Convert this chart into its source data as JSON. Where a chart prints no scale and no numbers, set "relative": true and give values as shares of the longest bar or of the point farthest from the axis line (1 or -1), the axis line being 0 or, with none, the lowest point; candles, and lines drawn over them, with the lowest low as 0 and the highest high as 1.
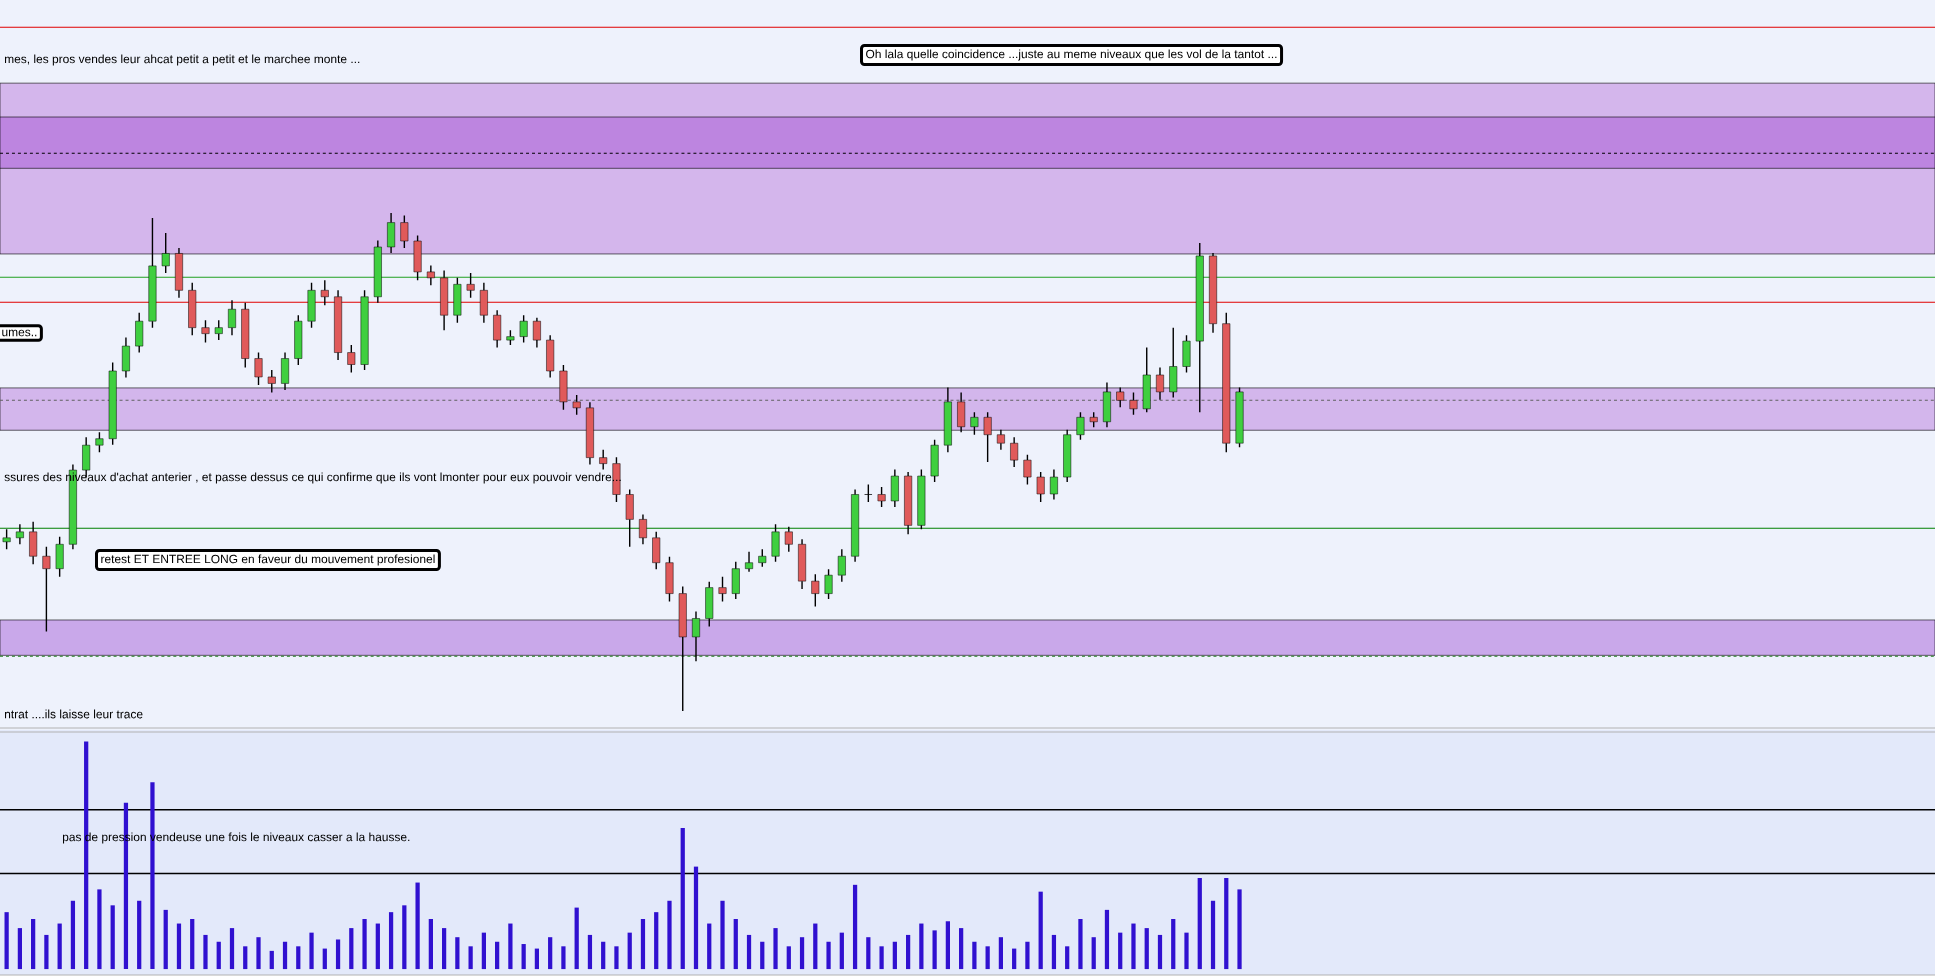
{
  "chart_data": [
    {
      "type": "candlestick",
      "relative": true,
      "categories": [
        null,
        null,
        null,
        null,
        null,
        null,
        null,
        null,
        null,
        null,
        null,
        null,
        null,
        null,
        null,
        null,
        null,
        null,
        null,
        null,
        null,
        null,
        null,
        null,
        null,
        null,
        null,
        null,
        null,
        null,
        null,
        null,
        null,
        null,
        null,
        null,
        null,
        null,
        null,
        null,
        null,
        null,
        null,
        null,
        null,
        null,
        null,
        null,
        null,
        null,
        null,
        null,
        null,
        null,
        null,
        null,
        null,
        null,
        null,
        null,
        null,
        null,
        null,
        null,
        null,
        null,
        null,
        null,
        null,
        null,
        null,
        null,
        null,
        null,
        null,
        null,
        null,
        null,
        null,
        null,
        null,
        null,
        null,
        null,
        null,
        null,
        null,
        null,
        null,
        null,
        null,
        null,
        null,
        null
      ],
      "ohlc": [
        [
          0.34,
          0.365,
          0.325,
          0.348
        ],
        [
          0.348,
          0.375,
          0.335,
          0.36
        ],
        [
          0.36,
          0.38,
          0.295,
          0.311
        ],
        [
          0.311,
          0.33,
          0.16,
          0.286
        ],
        [
          0.286,
          0.35,
          0.27,
          0.335
        ],
        [
          0.335,
          0.495,
          0.325,
          0.484
        ],
        [
          0.484,
          0.55,
          0.47,
          0.534
        ],
        [
          0.534,
          0.56,
          0.52,
          0.547
        ],
        [
          0.547,
          0.7,
          0.535,
          0.683
        ],
        [
          0.683,
          0.75,
          0.67,
          0.733
        ],
        [
          0.733,
          0.8,
          0.72,
          0.783
        ],
        [
          0.783,
          0.99,
          0.77,
          0.894
        ],
        [
          0.894,
          0.96,
          0.88,
          0.919
        ],
        [
          0.919,
          0.93,
          0.83,
          0.845
        ],
        [
          0.845,
          0.86,
          0.755,
          0.77
        ],
        [
          0.77,
          0.785,
          0.74,
          0.758
        ],
        [
          0.758,
          0.785,
          0.745,
          0.77
        ],
        [
          0.77,
          0.825,
          0.755,
          0.807
        ],
        [
          0.807,
          0.82,
          0.69,
          0.708
        ],
        [
          0.708,
          0.72,
          0.655,
          0.671
        ],
        [
          0.671,
          0.685,
          0.64,
          0.658
        ],
        [
          0.658,
          0.72,
          0.645,
          0.708
        ],
        [
          0.708,
          0.795,
          0.695,
          0.783
        ],
        [
          0.783,
          0.86,
          0.77,
          0.845
        ],
        [
          0.845,
          0.865,
          0.815,
          0.832
        ],
        [
          0.832,
          0.845,
          0.705,
          0.72
        ],
        [
          0.72,
          0.735,
          0.68,
          0.696
        ],
        [
          0.696,
          0.845,
          0.685,
          0.832
        ],
        [
          0.832,
          0.945,
          0.82,
          0.932
        ],
        [
          0.932,
          1.0,
          0.92,
          0.981
        ],
        [
          0.981,
          0.995,
          0.93,
          0.944
        ],
        [
          0.944,
          0.955,
          0.865,
          0.882
        ],
        [
          0.882,
          0.895,
          0.855,
          0.87
        ],
        [
          0.87,
          0.885,
          0.765,
          0.795
        ],
        [
          0.795,
          0.87,
          0.78,
          0.857
        ],
        [
          0.857,
          0.88,
          0.83,
          0.845
        ],
        [
          0.845,
          0.86,
          0.78,
          0.795
        ],
        [
          0.795,
          0.805,
          0.73,
          0.745
        ],
        [
          0.745,
          0.765,
          0.735,
          0.752
        ],
        [
          0.752,
          0.795,
          0.74,
          0.783
        ],
        [
          0.783,
          0.79,
          0.73,
          0.745
        ],
        [
          0.745,
          0.755,
          0.67,
          0.683
        ],
        [
          0.683,
          0.695,
          0.605,
          0.621
        ],
        [
          0.621,
          0.635,
          0.595,
          0.609
        ],
        [
          0.609,
          0.62,
          0.495,
          0.509
        ],
        [
          0.509,
          0.525,
          0.485,
          0.497
        ],
        [
          0.497,
          0.51,
          0.42,
          0.435
        ],
        [
          0.435,
          0.445,
          0.33,
          0.385
        ],
        [
          0.385,
          0.395,
          0.335,
          0.348
        ],
        [
          0.348,
          0.36,
          0.285,
          0.298
        ],
        [
          0.298,
          0.31,
          0.22,
          0.236
        ],
        [
          0.236,
          0.25,
          0.0,
          0.149
        ],
        [
          0.149,
          0.2,
          0.1,
          0.186
        ],
        [
          0.186,
          0.26,
          0.17,
          0.248
        ],
        [
          0.248,
          0.27,
          0.22,
          0.236
        ],
        [
          0.236,
          0.3,
          0.225,
          0.286
        ],
        [
          0.286,
          0.32,
          0.28,
          0.298
        ],
        [
          0.298,
          0.325,
          0.29,
          0.311
        ],
        [
          0.311,
          0.375,
          0.3,
          0.36
        ],
        [
          0.36,
          0.37,
          0.32,
          0.335
        ],
        [
          0.335,
          0.345,
          0.245,
          0.261
        ],
        [
          0.261,
          0.275,
          0.21,
          0.236
        ],
        [
          0.236,
          0.285,
          0.225,
          0.273
        ],
        [
          0.273,
          0.325,
          0.26,
          0.311
        ],
        [
          0.311,
          0.445,
          0.3,
          0.435
        ],
        [
          0.435,
          0.455,
          0.42,
          0.435
        ],
        [
          0.435,
          0.45,
          0.41,
          0.422
        ],
        [
          0.422,
          0.485,
          0.41,
          0.472
        ],
        [
          0.472,
          0.48,
          0.355,
          0.373
        ],
        [
          0.373,
          0.485,
          0.365,
          0.472
        ],
        [
          0.472,
          0.545,
          0.46,
          0.534
        ],
        [
          0.534,
          0.65,
          0.52,
          0.621
        ],
        [
          0.621,
          0.64,
          0.56,
          0.571
        ],
        [
          0.571,
          0.6,
          0.555,
          0.59
        ],
        [
          0.59,
          0.6,
          0.5,
          0.555
        ],
        [
          0.555,
          0.565,
          0.525,
          0.538
        ],
        [
          0.538,
          0.55,
          0.49,
          0.504
        ],
        [
          0.504,
          0.515,
          0.455,
          0.47
        ],
        [
          0.47,
          0.48,
          0.42,
          0.436
        ],
        [
          0.436,
          0.485,
          0.425,
          0.47
        ],
        [
          0.47,
          0.565,
          0.46,
          0.555
        ],
        [
          0.555,
          0.6,
          0.545,
          0.59
        ],
        [
          0.59,
          0.6,
          0.57,
          0.581
        ],
        [
          0.581,
          0.66,
          0.57,
          0.641
        ],
        [
          0.641,
          0.65,
          0.61,
          0.624
        ],
        [
          0.624,
          0.64,
          0.595,
          0.607
        ],
        [
          0.607,
          0.73,
          0.6,
          0.675
        ],
        [
          0.675,
          0.69,
          0.625,
          0.641
        ],
        [
          0.641,
          0.77,
          0.63,
          0.692
        ],
        [
          0.692,
          0.755,
          0.68,
          0.743
        ],
        [
          0.743,
          0.94,
          0.6,
          0.914
        ],
        [
          0.914,
          0.92,
          0.76,
          0.778
        ],
        [
          0.778,
          0.8,
          0.52,
          0.538
        ],
        [
          0.538,
          0.65,
          0.53,
          0.641
        ]
      ],
      "bands": [
        {
          "axis": "y",
          "from": 0.918,
          "to": 1.261,
          "color": "#d4b6ec"
        },
        {
          "axis": "y",
          "from": 1.09,
          "to": 1.193,
          "color": "#bd85e0"
        },
        {
          "axis": "y",
          "from": 0.564,
          "to": 0.649,
          "color": "#d3b6ec"
        },
        {
          "axis": "y",
          "from": 0.112,
          "to": 0.183,
          "color": "#c9a8ea"
        }
      ],
      "ref_lines": [
        {
          "axis": "y",
          "value": 1.373,
          "color": "#e00000",
          "line_style": "solid"
        },
        {
          "axis": "y",
          "value": 1.12,
          "color": "#000000",
          "line_style": "dashed"
        },
        {
          "axis": "y",
          "value": 0.871,
          "color": "#20a020",
          "line_style": "solid"
        },
        {
          "axis": "y",
          "value": 0.821,
          "color": "#e00000",
          "line_style": "solid"
        },
        {
          "axis": "y",
          "value": 0.624,
          "color": "#606060",
          "line_style": "dashed"
        },
        {
          "axis": "y",
          "value": 0.367,
          "color": "#008000",
          "line_style": "solid"
        },
        {
          "axis": "y",
          "value": 0.11,
          "color": "#208020",
          "line_style": "dashed"
        }
      ],
      "annotations": [
        "mes, les pros vendes leur ahcat petit a petit et le marchee monte ...",
        "Oh lala quelle coincidence ...juste au meme niveaux que les vol de la tantot ...",
        "umes..",
        "ssures des niveaux d'achat anterier , et passe dessus ce qui confirme que ils vont lmonter pour eux pouvoir vendre...",
        "retest ET ENTREE LONG en faveur du mouvement profesionel",
        "ntrat ....ils laisse leur trace"
      ]
    },
    {
      "type": "bar",
      "relative": true,
      "color": "#3010d0",
      "categories": [
        null,
        null,
        null,
        null,
        null,
        null,
        null,
        null,
        null,
        null,
        null,
        null,
        null,
        null,
        null,
        null,
        null,
        null,
        null,
        null,
        null,
        null,
        null,
        null,
        null,
        null,
        null,
        null,
        null,
        null,
        null,
        null,
        null,
        null,
        null,
        null,
        null,
        null,
        null,
        null,
        null,
        null,
        null,
        null,
        null,
        null,
        null,
        null,
        null,
        null,
        null,
        null,
        null,
        null,
        null,
        null,
        null,
        null,
        null,
        null,
        null,
        null,
        null,
        null,
        null,
        null,
        null,
        null,
        null,
        null,
        null,
        null,
        null,
        null,
        null,
        null,
        null,
        null,
        null,
        null,
        null,
        null,
        null,
        null,
        null,
        null,
        null,
        null,
        null,
        null,
        null,
        null,
        null,
        null
      ],
      "values": [
        0.25,
        0.18,
        0.22,
        0.15,
        0.2,
        0.3,
        1.0,
        0.35,
        0.28,
        0.73,
        0.3,
        0.82,
        0.26,
        0.2,
        0.22,
        0.15,
        0.12,
        0.18,
        0.1,
        0.14,
        0.08,
        0.12,
        0.1,
        0.16,
        0.09,
        0.13,
        0.18,
        0.22,
        0.2,
        0.25,
        0.28,
        0.38,
        0.22,
        0.18,
        0.14,
        0.1,
        0.16,
        0.12,
        0.2,
        0.11,
        0.09,
        0.14,
        0.1,
        0.27,
        0.15,
        0.12,
        0.1,
        0.16,
        0.22,
        0.25,
        0.3,
        0.62,
        0.45,
        0.2,
        0.3,
        0.22,
        0.15,
        0.12,
        0.18,
        0.1,
        0.14,
        0.2,
        0.12,
        0.16,
        0.37,
        0.14,
        0.1,
        0.12,
        0.15,
        0.2,
        0.17,
        0.21,
        0.18,
        0.12,
        0.1,
        0.14,
        0.09,
        0.12,
        0.34,
        0.15,
        0.1,
        0.22,
        0.14,
        0.26,
        0.16,
        0.2,
        0.18,
        0.15,
        0.22,
        0.16,
        0.4,
        0.3,
        0.4,
        0.35
      ],
      "ref_lines": [
        {
          "axis": "y",
          "value": 0.7,
          "color": "#000000",
          "line_style": "solid"
        },
        {
          "axis": "y",
          "value": 0.42,
          "color": "#000000",
          "line_style": "solid"
        }
      ],
      "annotations": [
        "pas de pression vendeuse une fois le niveaux casser a la hausse."
      ]
    }
  ]
}
